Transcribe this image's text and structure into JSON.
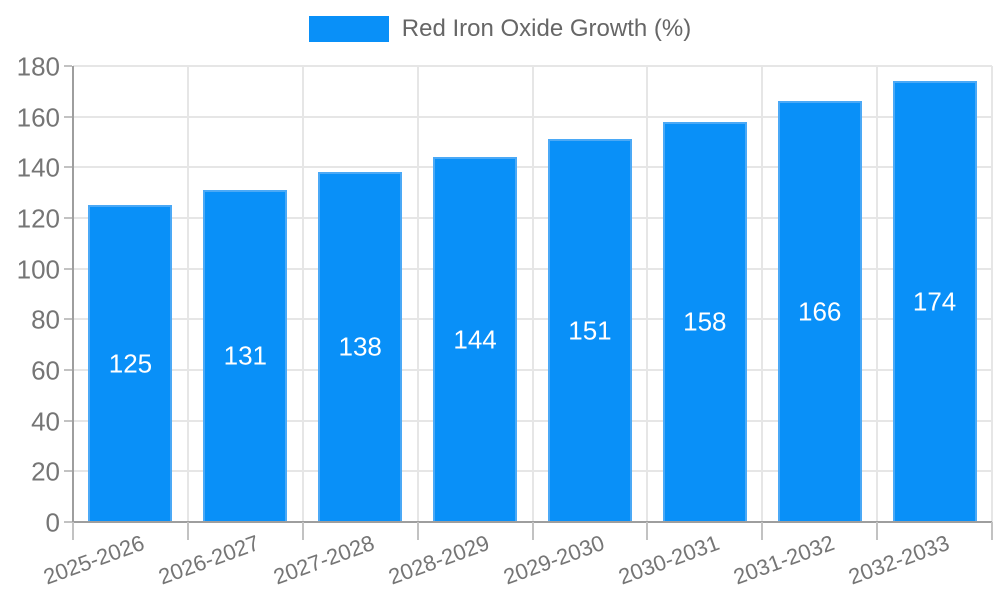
{
  "chart_data": {
    "type": "bar",
    "title": "",
    "legend": {
      "label": "Red Iron Oxide Growth (%)",
      "position": "top"
    },
    "categories": [
      "2025-2026",
      "2026-2027",
      "2027-2028",
      "2028-2029",
      "2029-2030",
      "2030-2031",
      "2031-2032",
      "2032-2033"
    ],
    "series": [
      {
        "name": "Red Iron Oxide Growth (%)",
        "values": [
          125,
          131,
          138,
          144,
          151,
          158,
          166,
          174
        ]
      }
    ],
    "value_labels": [
      "125",
      "131",
      "138",
      "144",
      "151",
      "158",
      "166",
      "174"
    ],
    "xlabel": "",
    "ylabel": "",
    "ylim": [
      0,
      180
    ],
    "y_ticks": [
      0,
      20,
      40,
      60,
      80,
      100,
      120,
      140,
      160,
      180
    ],
    "grid": true,
    "colors": {
      "bar_fill": "#0990f8",
      "bar_border": "#4ba9f6",
      "gridline": "#e6e6e6",
      "axis_line": "#9e9e9e",
      "tick_mark": "#c2c2c2",
      "axis_text": "#757575",
      "legend_text": "#666666",
      "value_text": "#ffffff",
      "background": "#ffffff"
    }
  }
}
